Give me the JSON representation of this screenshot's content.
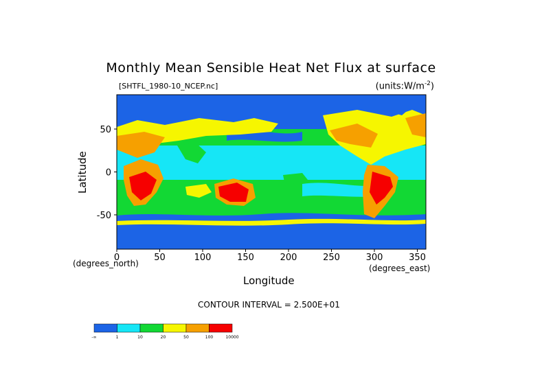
{
  "title": "Monthly Mean Sensible Heat Net Flux at surface",
  "subtitle": "[SHTFL_1980-10_NCEP.nc]",
  "units": "(units:W/m",
  "units_exp": "-2",
  "units_close": ")",
  "xunit": "(degrees_north)",
  "xunit2": "(degrees_east)",
  "contour_label": "CONTOUR INTERVAL = 2.500E+01",
  "chart_data": {
    "type": "heatmap",
    "title": "Monthly Mean Sensible Heat Net Flux at surface",
    "xlabel": "Longitude",
    "ylabel": "Latitude",
    "xlim": [
      0,
      360
    ],
    "ylim": [
      -90,
      90
    ],
    "xticks": [
      0,
      50,
      100,
      150,
      200,
      250,
      300,
      350
    ],
    "yticks": [
      50,
      0,
      -50
    ],
    "colorbar": {
      "colors": [
        "#1c64e6",
        "#16e6f6",
        "#12d834",
        "#f6f600",
        "#f6a000",
        "#f60000"
      ],
      "tick_labels": [
        "-∞",
        "1",
        "10",
        "20",
        "50",
        "100",
        "10000"
      ]
    }
  }
}
